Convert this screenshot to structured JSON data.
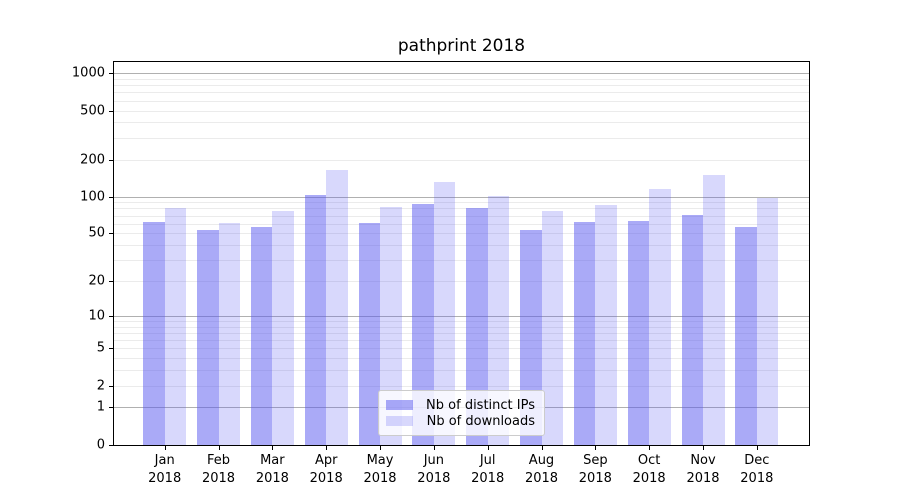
{
  "title": "pathprint 2018",
  "legend": {
    "items": [
      {
        "label": "Nb of distinct IPs",
        "color": "rgba(86,86,240,0.5)",
        "solid_hex": "#ababf9"
      },
      {
        "label": "Nb of downloads",
        "color": "rgba(86,86,240,0.23)",
        "solid_hex": "#d9d9fa"
      }
    ]
  },
  "chart_data": {
    "type": "bar",
    "title": "pathprint 2018",
    "categories": [
      "Jan 2018",
      "Feb 2018",
      "Mar 2018",
      "Apr 2018",
      "May 2018",
      "Jun 2018",
      "Jul 2018",
      "Aug 2018",
      "Sep 2018",
      "Oct 2018",
      "Nov 2018",
      "Dec 2018"
    ],
    "x_tick_months": [
      "Jan",
      "Feb",
      "Mar",
      "Apr",
      "May",
      "Jun",
      "Jul",
      "Aug",
      "Sep",
      "Oct",
      "Nov",
      "Dec"
    ],
    "x_tick_year": "2018",
    "series": [
      {
        "name": "Nb of distinct IPs",
        "color": "rgba(86,86,240,0.5)",
        "values": [
          62,
          53,
          56,
          104,
          61,
          87,
          80,
          53,
          62,
          63,
          71,
          56
        ]
      },
      {
        "name": "Nb of downloads",
        "color": "rgba(86,86,240,0.23)",
        "values": [
          80,
          61,
          76,
          165,
          82,
          132,
          102,
          76,
          86,
          115,
          150,
          97
        ]
      }
    ],
    "xlabel": "",
    "ylabel": "",
    "y_scale": "log1p",
    "y_ticks": [
      0,
      1,
      2,
      5,
      10,
      20,
      50,
      100,
      200,
      500,
      1000
    ],
    "y_minor_gridlines": [
      2,
      3,
      4,
      5,
      6,
      7,
      8,
      9,
      20,
      30,
      40,
      50,
      60,
      70,
      80,
      90,
      200,
      300,
      400,
      500,
      600,
      700,
      800,
      900
    ],
    "y_major_gridlines": [
      1,
      10,
      100,
      1000
    ],
    "ylim": [
      0,
      1280
    ],
    "grid": true,
    "legend_position": "lower center",
    "colors": {
      "background": "#ffffff",
      "major_grid": "#b0b0b0",
      "minor_grid": "#ebebeb",
      "axis": "#000000"
    }
  }
}
